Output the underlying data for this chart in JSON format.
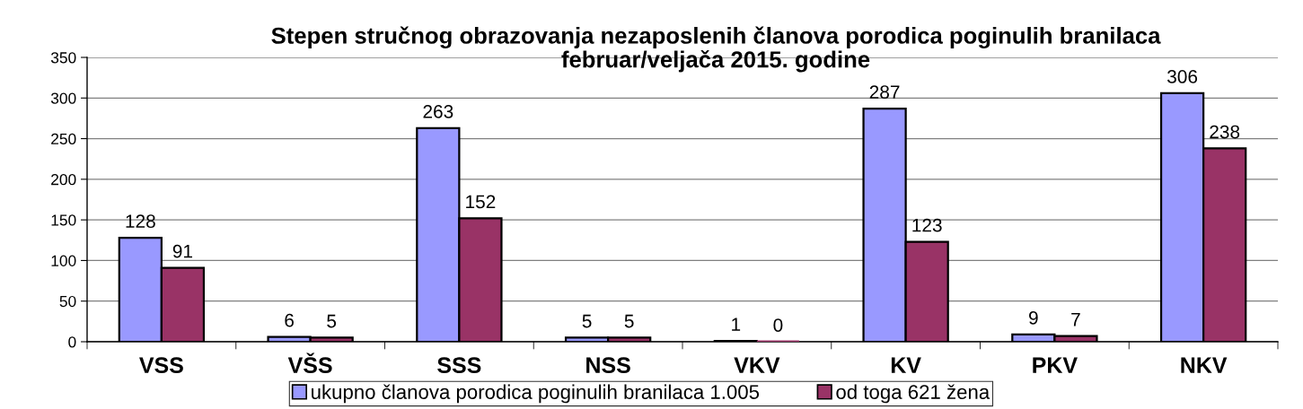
{
  "chart_data": {
    "type": "bar",
    "title": "Stepen stručnog obrazovanja nezaposlenih članova porodica poginulih branilaca\nfebruar/veljača 2015. godine",
    "categories": [
      "VSS",
      "VŠS",
      "SSS",
      "NSS",
      "VKV",
      "KV",
      "PKV",
      "NKV"
    ],
    "series": [
      {
        "name": "ukupno članova porodica poginulih branilaca 1.005",
        "color": "#9999ff",
        "values": [
          128,
          6,
          263,
          5,
          1,
          287,
          9,
          306
        ]
      },
      {
        "name": "od toga 621 žena",
        "color": "#993366",
        "values": [
          91,
          5,
          152,
          5,
          0,
          123,
          7,
          238
        ]
      }
    ],
    "ylim": [
      0,
      350
    ],
    "yticks": [
      0,
      50,
      100,
      150,
      200,
      250,
      300,
      350
    ],
    "grid": "y",
    "legend": "bottom",
    "data_labels": true
  }
}
